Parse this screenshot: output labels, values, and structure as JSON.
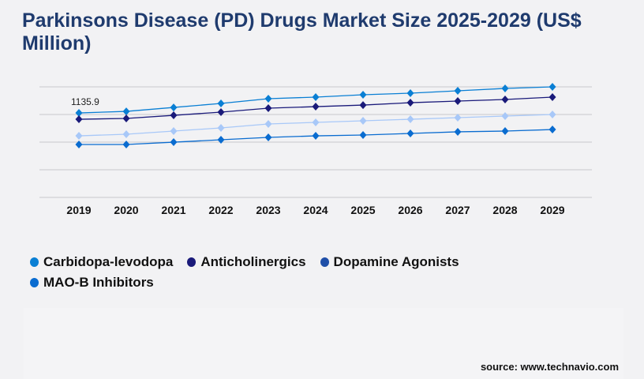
{
  "title": "Parkinsons Disease (PD) Drugs Market Size 2025-2029 (US$ Million)",
  "source": "source: www.technavio.com",
  "chart_data": {
    "type": "line",
    "title": "Parkinsons Disease (PD) Drugs Market Size 2025-2029 (US$ Million)",
    "xlabel": "",
    "ylabel": "",
    "x": [
      "2019",
      "2020",
      "2021",
      "2022",
      "2023",
      "2024",
      "2025",
      "2026",
      "2027",
      "2028",
      "2029"
    ],
    "ylim": [
      0,
      1487
    ],
    "grid": true,
    "legend_position": "bottom",
    "annotations": [
      {
        "series": "Carbidopa-levodopa",
        "x": "2019",
        "text": "1135.9"
      }
    ],
    "series": [
      {
        "name": "Carbidopa-levodopa",
        "color": "#0a7fd4",
        "legend_color": "#0a7fd4",
        "values": [
          1135.9,
          1157,
          1210,
          1264,
          1328,
          1349,
          1381,
          1402,
          1434,
          1466,
          1487
        ]
      },
      {
        "name": "Anticholinergics",
        "color": "#1a1a7a",
        "legend_color": "#1a1a7a",
        "values": [
          1051,
          1062,
          1104,
          1147,
          1200,
          1221,
          1242,
          1274,
          1296,
          1317,
          1349
        ]
      },
      {
        "name": "Dopamine Agonists",
        "color": "#a8c8f8",
        "legend_color": "#1f4fa8",
        "values": [
          828,
          850,
          892,
          935,
          988,
          1009,
          1030,
          1051,
          1073,
          1094,
          1115
        ]
      },
      {
        "name": "MAO-B Inhibitors",
        "color": "#0a6cd0",
        "legend_color": "#0a6cd0",
        "values": [
          712,
          712,
          743,
          775,
          807,
          828,
          839,
          860,
          882,
          892,
          913
        ]
      }
    ]
  }
}
